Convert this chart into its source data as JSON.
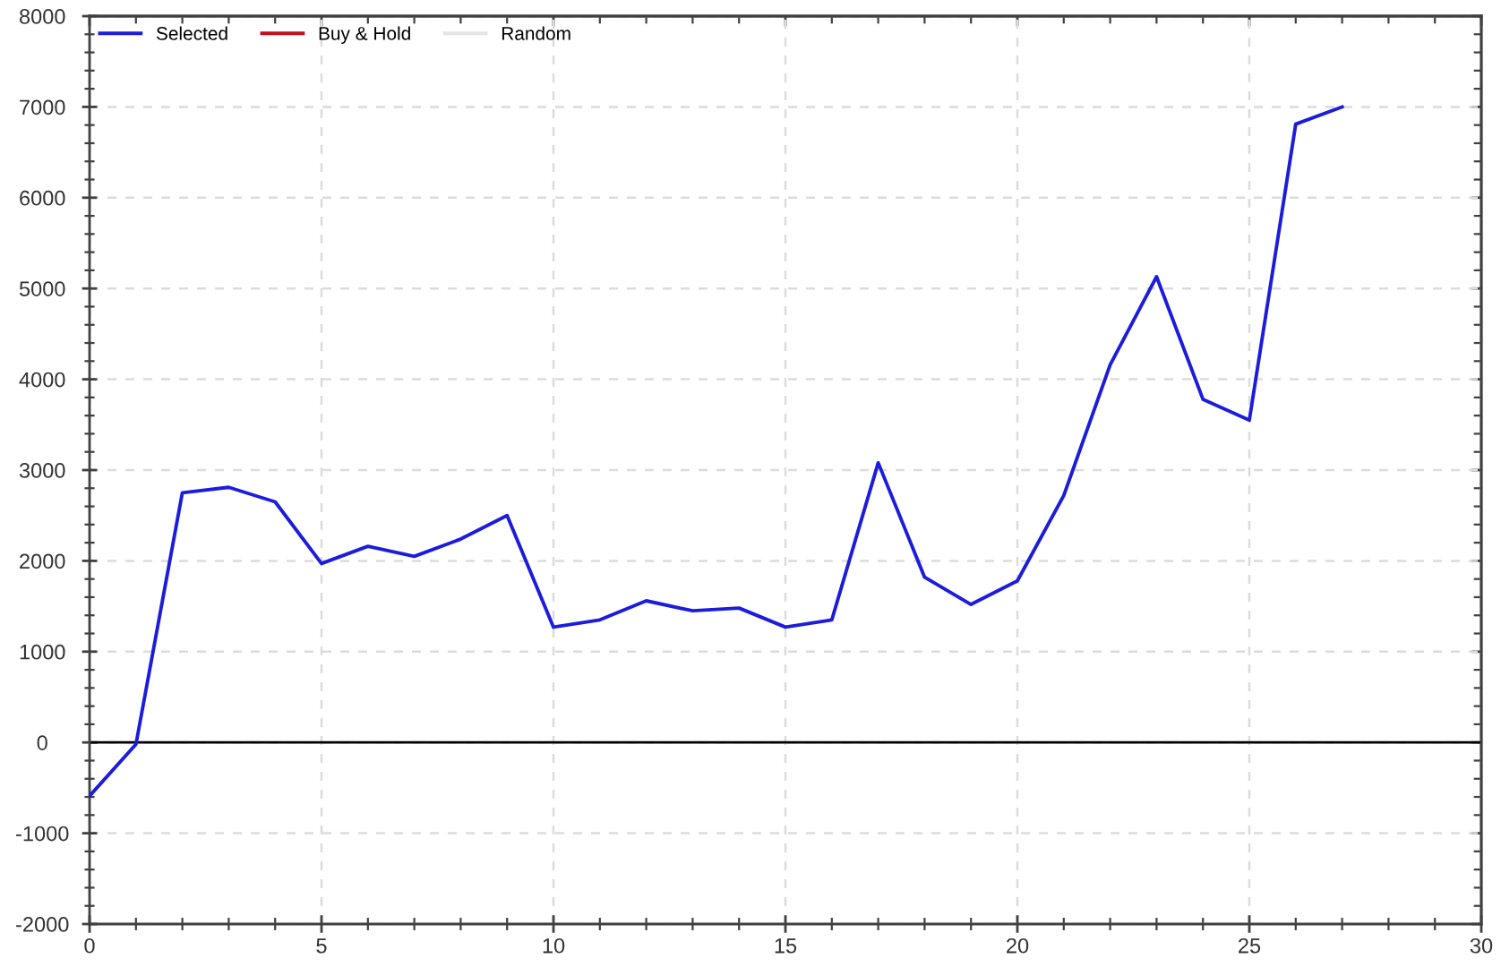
{
  "chart_data": {
    "type": "line",
    "x": [
      0,
      1,
      2,
      3,
      4,
      5,
      6,
      7,
      8,
      9,
      10,
      11,
      12,
      13,
      14,
      15,
      16,
      17,
      18,
      19,
      20,
      21,
      22,
      23,
      24,
      25,
      26,
      27
    ],
    "series": [
      {
        "name": "Selected",
        "color": "#1c1cdc",
        "values": [
          -590,
          -20,
          2750,
          2810,
          2650,
          1970,
          2160,
          2050,
          2240,
          2500,
          1270,
          1350,
          1560,
          1450,
          1480,
          1270,
          1350,
          3080,
          1820,
          1520,
          1780,
          2720,
          4160,
          5130,
          3780,
          3550,
          6810,
          7000
        ]
      },
      {
        "name": "Buy & Hold",
        "color": "#c0101c",
        "values": [
          null,
          null,
          null,
          null,
          null,
          null,
          null,
          null,
          null,
          null,
          null,
          null,
          null,
          null,
          null,
          null,
          null,
          null,
          null,
          null,
          null,
          null,
          null,
          null,
          null,
          null,
          null,
          null
        ]
      },
      {
        "name": "Random",
        "color": "#e4e4e4",
        "values": [
          null,
          null,
          null,
          null,
          null,
          null,
          null,
          null,
          null,
          null,
          null,
          null,
          null,
          null,
          null,
          null,
          null,
          null,
          null,
          null,
          null,
          null,
          null,
          null,
          null,
          null,
          null,
          null
        ]
      }
    ],
    "xlim": [
      0,
      30
    ],
    "xticks": [
      0,
      5,
      10,
      15,
      20,
      25,
      30
    ],
    "ylim": [
      -2000,
      8000
    ],
    "yticks": [
      -2000,
      -1000,
      0,
      1000,
      2000,
      3000,
      4000,
      5000,
      6000,
      7000,
      8000
    ],
    "ref_lines": [
      {
        "axis": "y",
        "value": 0,
        "color": "#000000",
        "line_style": "solid"
      }
    ],
    "grid": true,
    "legend": "top left",
    "marker": "none",
    "line_style": "solid"
  }
}
